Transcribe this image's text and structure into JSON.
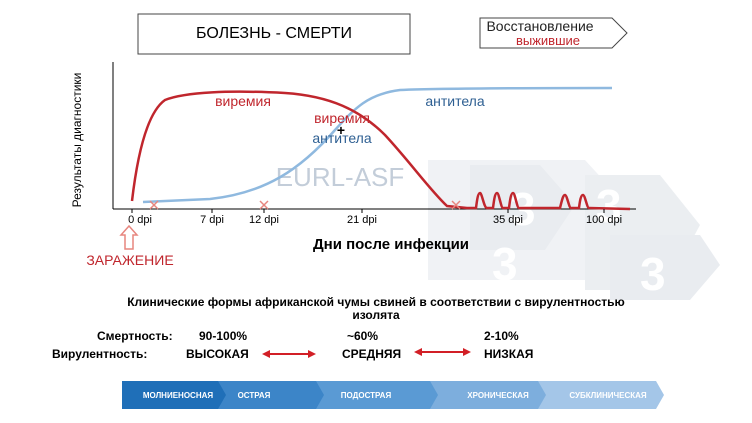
{
  "header": {
    "disease_death": "БОЛЕЗНЬ - СМЕРТИ",
    "recovery": "Восстановление",
    "survivors": "выжившие"
  },
  "chart": {
    "ylabel": "Результаты диагностики",
    "xlabel": "Дни после инфекции",
    "watermark": "EURL-ASF",
    "infection_label": "ЗАРАЖЕНИЕ",
    "labels": {
      "viremia_1": "виремия",
      "viremia_2": "виремия",
      "plus": "+",
      "antibodies_2": "антитела",
      "antibodies_1": "антитела"
    },
    "ticks": [
      "0 dpi",
      "7 dpi",
      "12 dpi",
      "21 dpi",
      "35 dpi",
      "100 dpi"
    ],
    "colors": {
      "viremia": "#c0262d",
      "antibodies": "#8fb9df",
      "marker": "#e7867f"
    }
  },
  "info": {
    "title_line1": "Клинические формы африканской чумы свиней в соответствии с вирулентностью",
    "title_line2": "изолята",
    "mortality_label": "Смертность:",
    "mortality_high": "90-100%",
    "mortality_mid": "~60%",
    "mortality_low": "2-10%",
    "virulence_label": "Вирулентность:",
    "virulence_high": "ВЫСОКАЯ",
    "virulence_mid": "СРЕДНЯЯ",
    "virulence_low": "НИЗКАЯ"
  },
  "forms_bar": {
    "items": [
      "МОЛНИЕНОСНАЯ",
      "ОСТРАЯ",
      "ПОДОСТРАЯ",
      "ХРОНИЧЕСКАЯ",
      "СУБКЛИНИЧЕСКАЯ"
    ],
    "colors": [
      "#1f6fb8",
      "#3c85c8",
      "#5a9ad4",
      "#7daedd",
      "#a4c6e8"
    ]
  }
}
